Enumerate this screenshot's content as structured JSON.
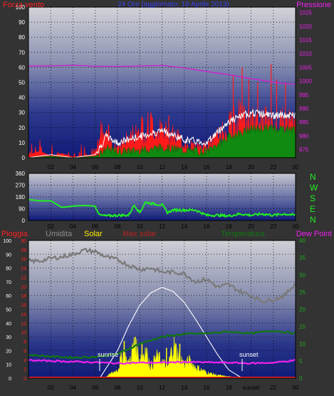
{
  "header": {
    "left_label": "Forza vento",
    "center_label": "24 Ore (aggiornato: 19 Aprile 2013)",
    "right_label": "Pressione"
  },
  "colors": {
    "wind": "#ff1a1a",
    "gust": "#ffffff",
    "avg_wind": "#108a10",
    "pressure": "#cc22cc",
    "direction": "#22ee22",
    "rain": "#ff2020",
    "humidity": "#7a7a7a",
    "solar": "#ffff00",
    "max_solar": "#ffffff",
    "temperature": "#117711",
    "dew_point": "#ee22ee"
  },
  "panel3_legend": {
    "rain": "Pioggia",
    "humidity": "Umidita",
    "solar": "Solar",
    "max_solar": "Max solar",
    "temperature": "Temperatura",
    "dew_point": "Dew Point"
  },
  "direction_letters": [
    "N",
    "W",
    "S",
    "E",
    "N"
  ],
  "annotations": {
    "sunrise": "sunrise",
    "sunset": "sunset"
  },
  "chart_data": [
    {
      "type": "line",
      "panel": "wind-pressure",
      "x_ticks": [
        "02",
        "04",
        "06",
        "08",
        "10",
        "12",
        "14",
        "16",
        "18",
        "20",
        "22",
        "00"
      ],
      "y_left_ticks": [
        0,
        10,
        20,
        30,
        40,
        50,
        60,
        70,
        80,
        90,
        100
      ],
      "y_right_ticks": [
        975,
        980,
        985,
        990,
        995,
        1000,
        1005,
        1010,
        1015,
        1020,
        1025
      ],
      "ylim_left": [
        0,
        100
      ],
      "ylim_right": [
        972,
        1027
      ],
      "x_hours": [
        0,
        24
      ],
      "series": [
        {
          "name": "Pressione",
          "axis": "right",
          "x": [
            0,
            2,
            4,
            6,
            8,
            10,
            12,
            14,
            16,
            18,
            20,
            22,
            24
          ],
          "values": [
            1005.5,
            1005.5,
            1005.8,
            1005.4,
            1005.3,
            1005.5,
            1005.7,
            1004.8,
            1003.5,
            1002.3,
            1000.9,
            999.6,
            998.7
          ]
        },
        {
          "name": "Forza vento",
          "axis": "left",
          "x": [
            0,
            1,
            2,
            3,
            4,
            5,
            6,
            6.5,
            7,
            7.5,
            8,
            9,
            10,
            11,
            12,
            13,
            14,
            15,
            16,
            17,
            18,
            19,
            20,
            21,
            22,
            23,
            24
          ],
          "values": [
            3,
            8,
            2,
            5,
            1,
            2,
            4,
            22,
            18,
            12,
            10,
            16,
            25,
            28,
            22,
            20,
            12,
            10,
            10,
            18,
            26,
            35,
            28,
            32,
            26,
            30,
            28
          ]
        },
        {
          "name": "",
          "axis": "left",
          "x": [
            0,
            2,
            4,
            6,
            7,
            8,
            10,
            12,
            14,
            16,
            18,
            20,
            22,
            24
          ],
          "values": [
            0,
            1,
            0,
            1,
            6,
            4,
            5,
            7,
            5,
            4,
            14,
            19,
            20,
            19
          ]
        },
        {
          "name": "",
          "axis": "left",
          "x": [
            0,
            2,
            4,
            6,
            7,
            8,
            10,
            12,
            14,
            16,
            18,
            20,
            22,
            24
          ],
          "values": [
            0,
            2,
            0,
            2,
            14,
            10,
            14,
            18,
            12,
            10,
            24,
            30,
            28,
            28
          ]
        }
      ]
    },
    {
      "type": "line",
      "panel": "wind-direction",
      "x_ticks": [
        "02",
        "04",
        "06",
        "08",
        "10",
        "12",
        "14",
        "16",
        "18",
        "20",
        "22",
        "00"
      ],
      "y_ticks": [
        0,
        90,
        180,
        270,
        360
      ],
      "ylim": [
        0,
        360
      ],
      "series": [
        {
          "name": "",
          "x": [
            0,
            1,
            2,
            3,
            4,
            5,
            6,
            6.4,
            7,
            8,
            9,
            9.5,
            10,
            10.5,
            11,
            12,
            12.5,
            13,
            14,
            15,
            16,
            17,
            18,
            19,
            20,
            21,
            22,
            23,
            24
          ],
          "values": [
            160,
            150,
            150,
            100,
            110,
            115,
            110,
            40,
            35,
            40,
            40,
            120,
            60,
            140,
            130,
            120,
            60,
            80,
            80,
            80,
            40,
            40,
            35,
            50,
            40,
            50,
            40,
            50,
            40
          ]
        }
      ]
    },
    {
      "type": "area",
      "panel": "weather",
      "x_ticks": [
        "02",
        "04",
        "06",
        "08",
        "10",
        "12",
        "14",
        "16",
        "18",
        "sunset",
        "22",
        "00"
      ],
      "y_left_ticks": [
        0,
        10,
        20,
        30,
        40,
        50,
        60,
        70,
        80,
        90,
        100
      ],
      "y_rain_ticks": [
        0,
        2,
        4,
        6,
        8,
        10,
        12,
        14,
        16,
        18,
        20,
        22,
        24,
        26,
        28,
        30
      ],
      "y_right_ticks": [
        0,
        5,
        10,
        15,
        20,
        25,
        30,
        35,
        40
      ],
      "ylim_left": [
        0,
        100
      ],
      "ylim_right": [
        0,
        40
      ],
      "series": [
        {
          "name": "Umidita",
          "axis": "left",
          "x": [
            0,
            1,
            2,
            3,
            4,
            5,
            6,
            7,
            8,
            9,
            10,
            11,
            12,
            13,
            14,
            15,
            16,
            17,
            18,
            19,
            20,
            21,
            22,
            23,
            24
          ],
          "values": [
            85,
            85,
            87,
            88,
            90,
            93,
            92,
            88,
            86,
            82,
            79,
            80,
            77,
            77,
            76,
            70,
            72,
            66,
            68,
            63,
            60,
            56,
            57,
            60,
            69
          ]
        },
        {
          "name": "Temperatura",
          "axis": "right",
          "x": [
            0,
            2,
            4,
            6,
            8,
            10,
            12,
            14,
            16,
            18,
            20,
            22,
            24
          ],
          "values": [
            6.8,
            6.3,
            6.0,
            6.2,
            7.0,
            10.0,
            12.0,
            12.8,
            13.0,
            13.5,
            13.0,
            13.8,
            13.0
          ]
        },
        {
          "name": "Dew Point",
          "axis": "right",
          "x": [
            0,
            2,
            4,
            6,
            8,
            10,
            12,
            14,
            16,
            18,
            20,
            22,
            24
          ],
          "values": [
            5.2,
            5.0,
            4.8,
            4.6,
            4.3,
            4.5,
            4.5,
            4.7,
            4.6,
            4.5,
            4.3,
            4.5,
            5.2
          ]
        },
        {
          "name": "Max solar",
          "axis": "left",
          "x": [
            6.4,
            8,
            9,
            10,
            11,
            12,
            13,
            14,
            15,
            16,
            17,
            18,
            19.2
          ],
          "values": [
            0,
            20,
            38,
            53,
            62,
            66,
            63,
            55,
            43,
            30,
            17,
            6,
            0
          ]
        },
        {
          "name": "Solar",
          "axis": "left",
          "x": [
            6.5,
            7,
            8,
            8.5,
            9,
            9.5,
            10,
            10.5,
            11,
            11.5,
            12,
            12.5,
            13,
            13.5,
            14,
            14.5,
            15,
            15.5,
            16,
            17,
            18,
            19
          ],
          "values": [
            0,
            1,
            6,
            18,
            10,
            24,
            14,
            20,
            8,
            15,
            12,
            7,
            24,
            16,
            10,
            12,
            8,
            6,
            4,
            2,
            1,
            0
          ]
        },
        {
          "name": "Pioggia",
          "axis": "rain",
          "x": [
            0,
            24
          ],
          "values": [
            0,
            0
          ]
        }
      ],
      "sunrise_hour": 6.4,
      "sunset_hour": 19.2
    }
  ]
}
